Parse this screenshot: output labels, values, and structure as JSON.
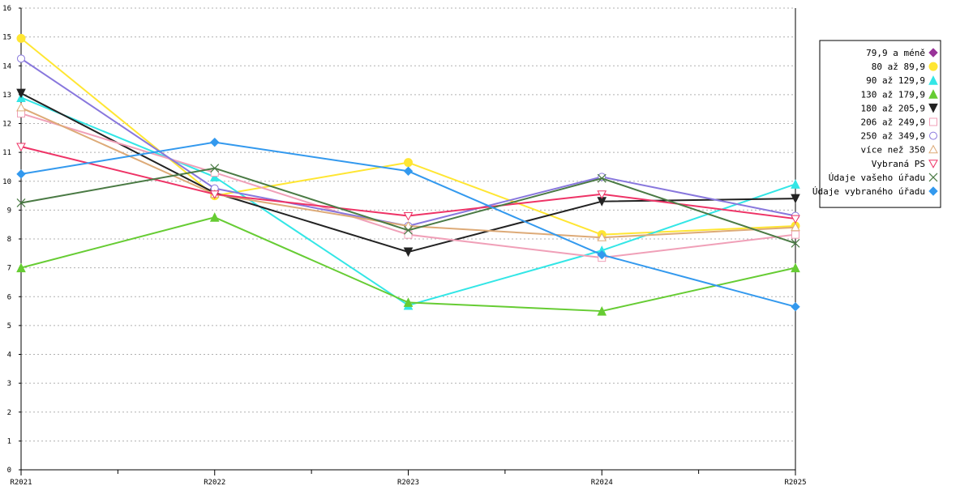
{
  "chart_data": {
    "type": "line",
    "x": [
      "R2021",
      "R2022",
      "R2023",
      "R2024",
      "R2025"
    ],
    "ylim": [
      0,
      16
    ],
    "yticks": [
      0,
      1,
      2,
      3,
      4,
      5,
      6,
      7,
      8,
      9,
      10,
      11,
      12,
      13,
      14,
      15,
      16
    ],
    "grid": true,
    "legend_position": "right",
    "series": [
      {
        "name": "79,9 a méně",
        "color": "#993399",
        "marker": "diamond",
        "values": [
          null,
          null,
          null,
          null,
          null
        ]
      },
      {
        "name": "80 až 89,9",
        "color": "#ffe633",
        "marker": "circle-filled",
        "values": [
          14.95,
          9.5,
          10.65,
          8.15,
          8.45
        ]
      },
      {
        "name": "90 až 129,9",
        "color": "#33e6e6",
        "marker": "triangle-up",
        "values": [
          12.9,
          10.15,
          5.7,
          7.6,
          9.9
        ]
      },
      {
        "name": "130 až 179,9",
        "color": "#66cc33",
        "marker": "triangle-up",
        "values": [
          7.0,
          8.75,
          5.8,
          5.5,
          7.0
        ]
      },
      {
        "name": "180 až 205,9",
        "color": "#222222",
        "marker": "triangle-down",
        "values": [
          13.05,
          9.6,
          7.55,
          9.3,
          9.4
        ]
      },
      {
        "name": "206 až 249,9",
        "color": "#f0a0b8",
        "marker": "square-open",
        "values": [
          12.35,
          10.3,
          8.15,
          7.35,
          8.15
        ]
      },
      {
        "name": "250 až 349,9",
        "color": "#8877dd",
        "marker": "circle-open",
        "values": [
          14.25,
          9.75,
          8.45,
          10.15,
          8.8
        ]
      },
      {
        "name": "více než 350",
        "color": "#ddaa77",
        "marker": "triangle-up-open",
        "values": [
          12.55,
          9.55,
          8.45,
          8.05,
          8.4
        ]
      },
      {
        "name": "Vybraná PS",
        "color": "#ee3366",
        "marker": "triangle-down-open",
        "values": [
          11.2,
          9.55,
          8.8,
          9.55,
          8.7
        ]
      },
      {
        "name": "Údaje vašeho úřadu",
        "color": "#4a7a44",
        "marker": "x",
        "values": [
          9.25,
          10.45,
          8.3,
          10.1,
          7.85
        ]
      },
      {
        "name": "Údaje vybraného úřadu",
        "color": "#3399ee",
        "marker": "diamond",
        "values": [
          10.25,
          11.35,
          10.35,
          7.45,
          5.65
        ]
      }
    ]
  }
}
